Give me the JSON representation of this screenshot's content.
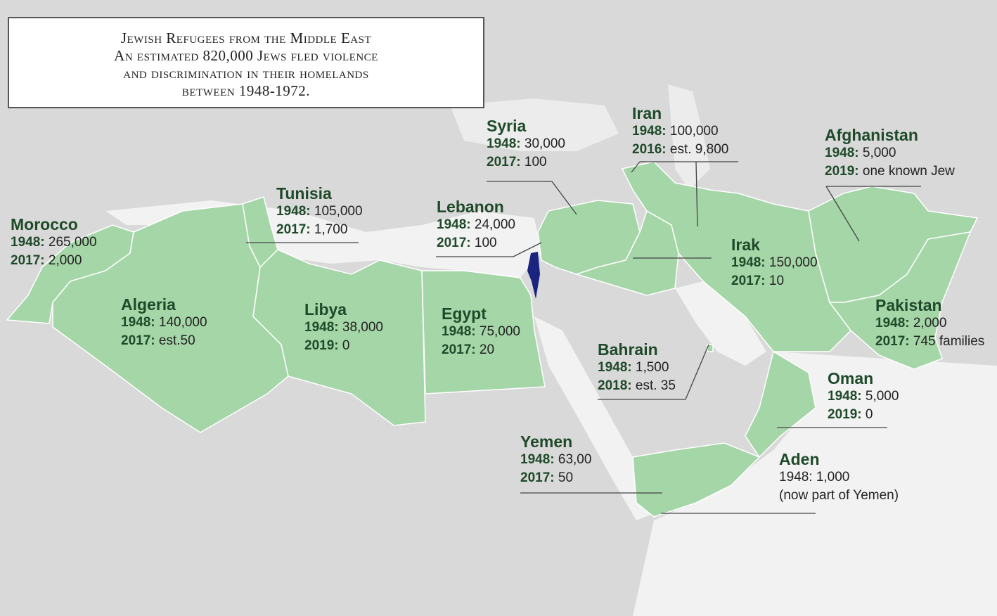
{
  "colors": {
    "background": "#d9d9d9",
    "sea": "#f2f2f2",
    "highlighted_country": "#a5d6a7",
    "israel": "#1a237e",
    "label_text": "#1f4a2a"
  },
  "title_lines": [
    "Jewish Refugees from the Middle East",
    "An estimated 820,000 Jews fled violence",
    "and discrimination in their homelands",
    "between 1948-1972."
  ],
  "countries": {
    "morocco": {
      "name": "Morocco",
      "rows": [
        {
          "year": "1948:",
          "value": "265,000"
        },
        {
          "year": "2017:",
          "value": "2,000"
        }
      ]
    },
    "algeria": {
      "name": "Algeria",
      "rows": [
        {
          "year": "1948:",
          "value": "140,000"
        },
        {
          "year": "2017:",
          "value": "est.50"
        }
      ]
    },
    "tunisia": {
      "name": "Tunisia",
      "rows": [
        {
          "year": "1948:",
          "value": "105,000"
        },
        {
          "year": "2017:",
          "value": "1,700"
        }
      ]
    },
    "libya": {
      "name": "Libya",
      "rows": [
        {
          "year": "1948:",
          "value": "38,000"
        },
        {
          "year": "2019:",
          "value": "0"
        }
      ]
    },
    "egypt": {
      "name": "Egypt",
      "rows": [
        {
          "year": "1948:",
          "value": "75,000"
        },
        {
          "year": "2017:",
          "value": "20"
        }
      ]
    },
    "lebanon": {
      "name": "Lebanon",
      "rows": [
        {
          "year": "1948:",
          "value": "24,000"
        },
        {
          "year": "2017:",
          "value": "100"
        }
      ]
    },
    "syria": {
      "name": "Syria",
      "rows": [
        {
          "year": "1948:",
          "value": "30,000"
        },
        {
          "year": "2017:",
          "value": "100"
        }
      ]
    },
    "iran": {
      "name": "Iran",
      "rows": [
        {
          "year": "1948:",
          "value": "100,000"
        },
        {
          "year": "2016:",
          "value": "est. 9,800"
        }
      ]
    },
    "irak": {
      "name": "Irak",
      "rows": [
        {
          "year": "1948:",
          "value": "150,000"
        },
        {
          "year": "2017:",
          "value": "10"
        }
      ]
    },
    "afghanistan": {
      "name": "Afghanistan",
      "rows": [
        {
          "year": "1948:",
          "value": "5,000"
        },
        {
          "year": "2019:",
          "value": "one known Jew"
        }
      ]
    },
    "pakistan": {
      "name": "Pakistan",
      "rows": [
        {
          "year": "1948:",
          "value": "2,000"
        },
        {
          "year": "2017:",
          "value": "745 families"
        }
      ]
    },
    "bahrain": {
      "name": "Bahrain",
      "rows": [
        {
          "year": "1948:",
          "value": "1,500"
        },
        {
          "year": "2018:",
          "value": "est. 35"
        }
      ]
    },
    "oman": {
      "name": "Oman",
      "rows": [
        {
          "year": "1948:",
          "value": "5,000"
        },
        {
          "year": "2019:",
          "value": "0"
        }
      ]
    },
    "yemen": {
      "name": "Yemen",
      "rows": [
        {
          "year": "1948:",
          "value": "63,00"
        },
        {
          "year": "2017:",
          "value": "50"
        }
      ]
    },
    "aden": {
      "name": "Aden",
      "rows": [
        {
          "year": "",
          "value": "1948: 1,000"
        },
        {
          "year": "",
          "value": "(now part of Yemen)"
        }
      ]
    }
  }
}
